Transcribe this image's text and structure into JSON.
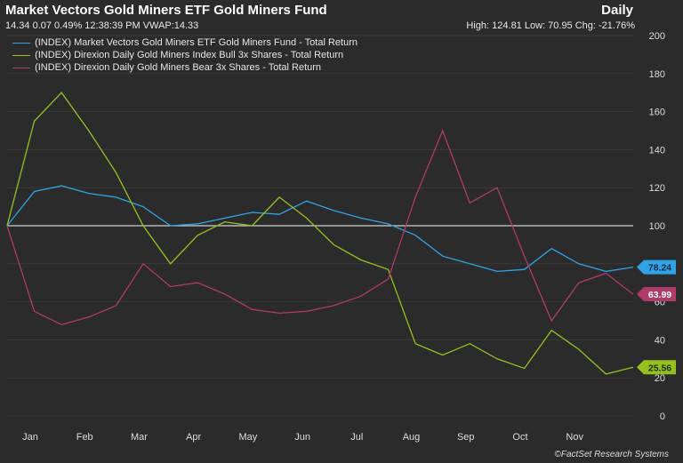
{
  "header": {
    "title": "Market Vectors Gold Miners ETF Gold Miners Fund",
    "frequency": "Daily",
    "quote": "14.34 0.07 0.49% 12:38:39 PM VWAP:14.33",
    "stats": "High: 124.81 Low: 70.95 Chg: -21.76%"
  },
  "footer": {
    "credit": "©FactSet Research Systems"
  },
  "colors": {
    "background": "#2b2b2b",
    "etf": "#2fa3e6",
    "bull": "#95c11f",
    "bear": "#b03a6a",
    "baseline": "#cfcfcf"
  },
  "chart_data": {
    "type": "line",
    "ylim": [
      0,
      200
    ],
    "yticks": [
      0,
      20,
      40,
      60,
      80,
      100,
      120,
      140,
      160,
      180,
      200
    ],
    "baseline": 100,
    "x": [
      0,
      0.5,
      1,
      1.5,
      2,
      2.5,
      3,
      3.5,
      4,
      4.5,
      5,
      5.5,
      6,
      6.5,
      7,
      7.5,
      8,
      8.5,
      9,
      9.5,
      10,
      10.5,
      11,
      11.5
    ],
    "month_ticks": [
      "Jan",
      "Feb",
      "Mar",
      "Apr",
      "May",
      "Jun",
      "Jul",
      "Aug",
      "Sep",
      "Oct",
      "Nov"
    ],
    "series": [
      {
        "name": "(INDEX) Market Vectors Gold Miners ETF Gold Miners Fund - Total Return",
        "color": "#2fa3e6",
        "last_label": "78.24",
        "values": [
          100,
          118,
          121,
          117,
          115,
          110,
          100,
          101,
          104,
          107,
          106,
          113,
          108,
          104,
          101,
          95,
          84,
          80,
          76,
          77,
          88,
          80,
          76,
          78.24
        ]
      },
      {
        "name": "(INDEX) Direxion Daily Gold Miners Index Bull 3x Shares - Total Return",
        "color": "#95c11f",
        "last_label": "25.56",
        "values": [
          100,
          155,
          170,
          150,
          128,
          100,
          80,
          95,
          102,
          100,
          115,
          104,
          90,
          82,
          77,
          38,
          32,
          38,
          30,
          25,
          45,
          35,
          22,
          25.56
        ]
      },
      {
        "name": "(INDEX) Direxion Daily Gold Miners Bear 3x Shares - Total Return",
        "color": "#b03a6a",
        "last_label": "63.99",
        "values": [
          100,
          55,
          48,
          52,
          58,
          80,
          68,
          70,
          64,
          56,
          54,
          55,
          58,
          63,
          72,
          115,
          150,
          112,
          120,
          84,
          50,
          70,
          75,
          63.99
        ]
      }
    ]
  }
}
